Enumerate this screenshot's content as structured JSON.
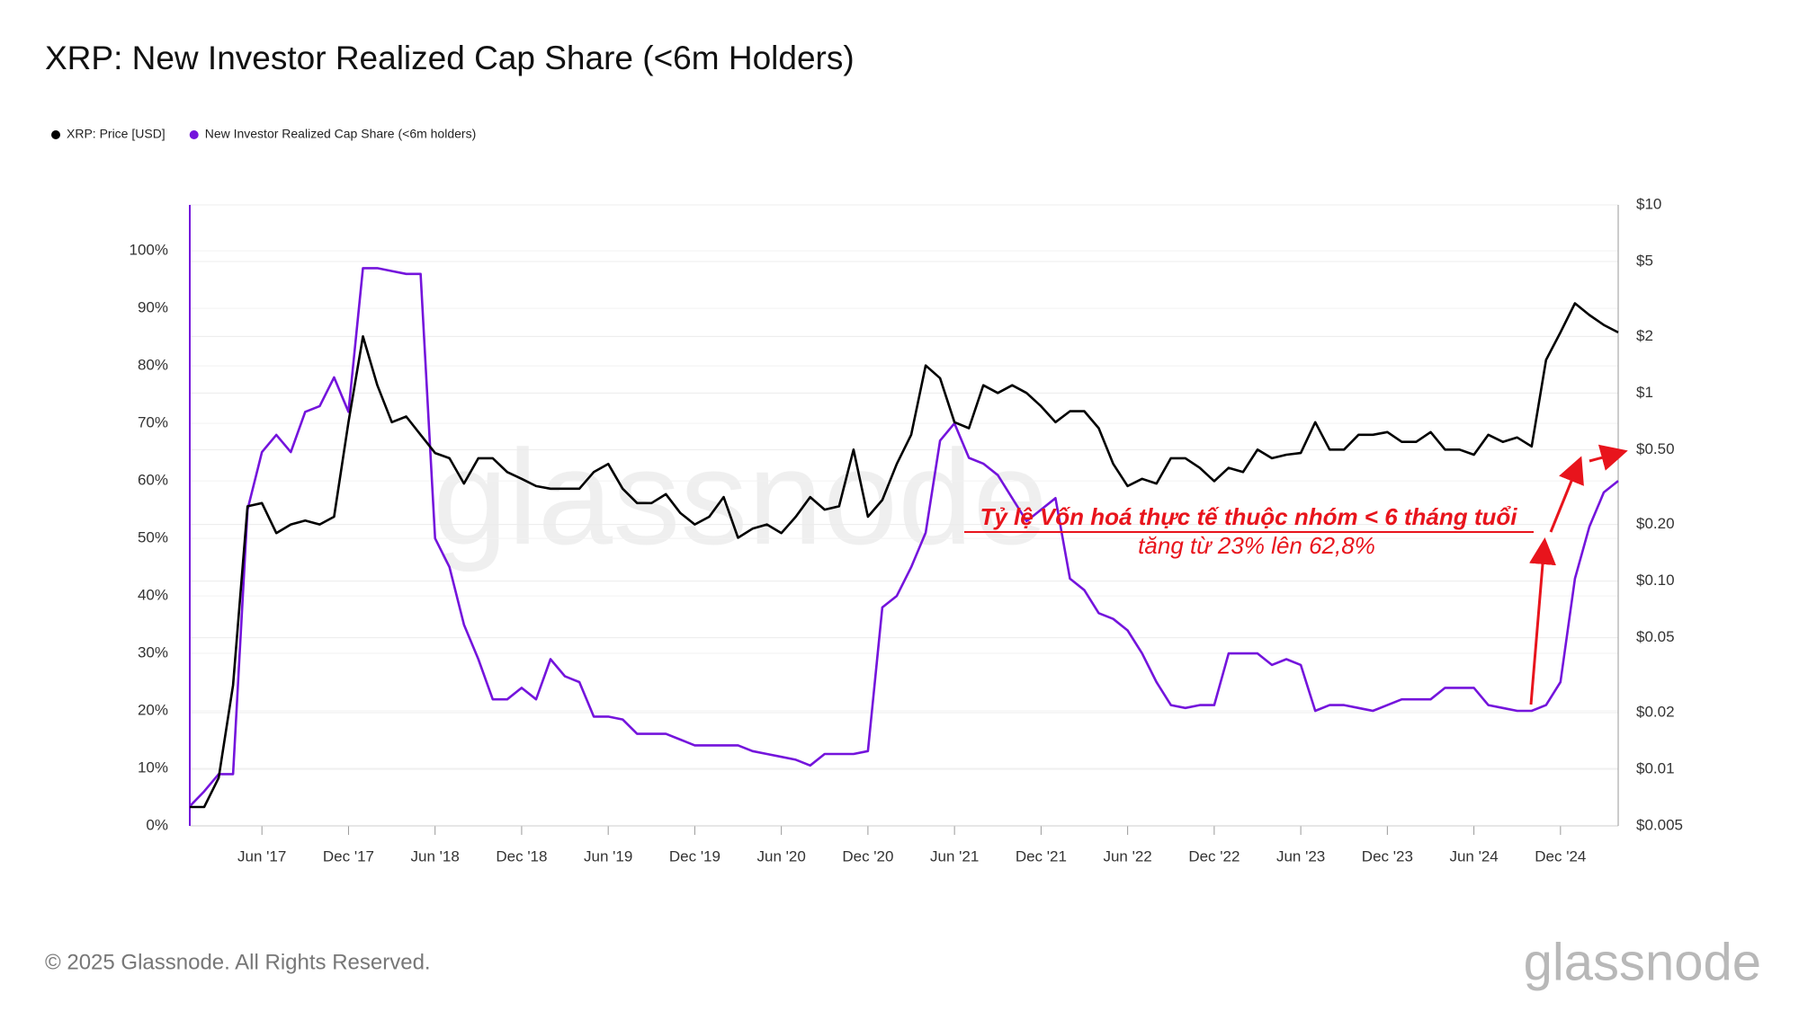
{
  "chart_data": {
    "type": "line",
    "title": "XRP: New Investor Realized Cap Share (<6m Holders)",
    "annotations": [
      "Tỷ lệ Vốn hoá thực tế thuộc nhóm < 6 tháng tuổi",
      "tăng từ 23% lên 62,8%"
    ],
    "watermark": "glassnode",
    "footer": "© 2025 Glassnode. All Rights Reserved.",
    "logo": "glassnode",
    "x": [
      "2017-01",
      "2017-02",
      "2017-03",
      "2017-04",
      "2017-05",
      "2017-06",
      "2017-07",
      "2017-08",
      "2017-09",
      "2017-10",
      "2017-11",
      "2017-12",
      "2018-01",
      "2018-02",
      "2018-03",
      "2018-04",
      "2018-05",
      "2018-06",
      "2018-07",
      "2018-08",
      "2018-09",
      "2018-10",
      "2018-11",
      "2018-12",
      "2019-01",
      "2019-02",
      "2019-03",
      "2019-04",
      "2019-05",
      "2019-06",
      "2019-07",
      "2019-08",
      "2019-09",
      "2019-10",
      "2019-11",
      "2019-12",
      "2020-01",
      "2020-02",
      "2020-03",
      "2020-04",
      "2020-05",
      "2020-06",
      "2020-07",
      "2020-08",
      "2020-09",
      "2020-10",
      "2020-11",
      "2020-12",
      "2021-01",
      "2021-02",
      "2021-03",
      "2021-04",
      "2021-05",
      "2021-06",
      "2021-07",
      "2021-08",
      "2021-09",
      "2021-10",
      "2021-11",
      "2021-12",
      "2022-01",
      "2022-02",
      "2022-03",
      "2022-04",
      "2022-05",
      "2022-06",
      "2022-07",
      "2022-08",
      "2022-09",
      "2022-10",
      "2022-11",
      "2022-12",
      "2023-01",
      "2023-02",
      "2023-03",
      "2023-04",
      "2023-05",
      "2023-06",
      "2023-07",
      "2023-08",
      "2023-09",
      "2023-10",
      "2023-11",
      "2023-12",
      "2024-01",
      "2024-02",
      "2024-03",
      "2024-04",
      "2024-05",
      "2024-06",
      "2024-07",
      "2024-08",
      "2024-09",
      "2024-10",
      "2024-11",
      "2024-12",
      "2025-01",
      "2025-02",
      "2025-03",
      "2025-04"
    ],
    "series": [
      {
        "name": "XRP: Price [USD]",
        "color": "#000000",
        "axis": "y2",
        "values": [
          0.0063,
          0.0063,
          0.009,
          0.028,
          0.25,
          0.26,
          0.18,
          0.2,
          0.21,
          0.2,
          0.22,
          0.7,
          2.0,
          1.1,
          0.7,
          0.75,
          0.6,
          0.48,
          0.45,
          0.33,
          0.45,
          0.45,
          0.38,
          0.35,
          0.32,
          0.31,
          0.31,
          0.31,
          0.38,
          0.42,
          0.31,
          0.26,
          0.26,
          0.29,
          0.23,
          0.2,
          0.22,
          0.28,
          0.17,
          0.19,
          0.2,
          0.18,
          0.22,
          0.28,
          0.24,
          0.25,
          0.5,
          0.22,
          0.27,
          0.42,
          0.6,
          1.4,
          1.2,
          0.7,
          0.65,
          1.1,
          1.0,
          1.1,
          1.0,
          0.85,
          0.7,
          0.8,
          0.8,
          0.65,
          0.42,
          0.32,
          0.35,
          0.33,
          0.45,
          0.45,
          0.4,
          0.34,
          0.4,
          0.38,
          0.5,
          0.45,
          0.47,
          0.48,
          0.7,
          0.5,
          0.5,
          0.6,
          0.6,
          0.62,
          0.55,
          0.55,
          0.62,
          0.5,
          0.5,
          0.47,
          0.6,
          0.55,
          0.58,
          0.52,
          1.5,
          2.1,
          3.0,
          2.6,
          2.3,
          2.1
        ]
      },
      {
        "name": "New Investor Realized Cap Share (<6m holders)",
        "color": "#7414dc",
        "axis": "y",
        "values": [
          3.4,
          6,
          9,
          9,
          55,
          65,
          68,
          65,
          72,
          73,
          78,
          72,
          97,
          97,
          96.5,
          96,
          96,
          50,
          45,
          35,
          29,
          22,
          22,
          24,
          22,
          29,
          26,
          25,
          19,
          19,
          18.5,
          16,
          16,
          16,
          15,
          14,
          14,
          14,
          14,
          13,
          12.5,
          12,
          11.5,
          10.5,
          12.5,
          12.5,
          12.5,
          13,
          38,
          40,
          45,
          51,
          67,
          70,
          64,
          63,
          61,
          57,
          53,
          55,
          57,
          43,
          41,
          37,
          36,
          34,
          30,
          25,
          21,
          20.5,
          21,
          21,
          30,
          30,
          30,
          28,
          29,
          28,
          20,
          21,
          21,
          20.5,
          20,
          21,
          22,
          22,
          22,
          24,
          24,
          24,
          21,
          20.5,
          20,
          20,
          21,
          25,
          43,
          52,
          58,
          60
        ]
      }
    ],
    "xlim": [
      "2017-01",
      "2025-04"
    ],
    "xticks": [
      {
        "value": "2017-06",
        "label": "Jun '17"
      },
      {
        "value": "2017-12",
        "label": "Dec '17"
      },
      {
        "value": "2018-06",
        "label": "Jun '18"
      },
      {
        "value": "2018-12",
        "label": "Dec '18"
      },
      {
        "value": "2019-06",
        "label": "Jun '19"
      },
      {
        "value": "2019-12",
        "label": "Dec '19"
      },
      {
        "value": "2020-06",
        "label": "Jun '20"
      },
      {
        "value": "2020-12",
        "label": "Dec '20"
      },
      {
        "value": "2021-06",
        "label": "Jun '21"
      },
      {
        "value": "2021-12",
        "label": "Dec '21"
      },
      {
        "value": "2022-06",
        "label": "Jun '22"
      },
      {
        "value": "2022-12",
        "label": "Dec '22"
      },
      {
        "value": "2023-06",
        "label": "Jun '23"
      },
      {
        "value": "2023-12",
        "label": "Dec '23"
      },
      {
        "value": "2024-06",
        "label": "Jun '24"
      },
      {
        "value": "2024-12",
        "label": "Dec '24"
      }
    ],
    "ylim": [
      0,
      108
    ],
    "yticks": [
      {
        "value": 0,
        "label": "0%"
      },
      {
        "value": 10,
        "label": "10%"
      },
      {
        "value": 20,
        "label": "20%"
      },
      {
        "value": 30,
        "label": "30%"
      },
      {
        "value": 40,
        "label": "40%"
      },
      {
        "value": 50,
        "label": "50%"
      },
      {
        "value": 60,
        "label": "60%"
      },
      {
        "value": 70,
        "label": "70%"
      },
      {
        "value": 80,
        "label": "80%"
      },
      {
        "value": 90,
        "label": "90%"
      },
      {
        "value": 100,
        "label": "100%"
      }
    ],
    "y2lim": [
      0.005,
      10
    ],
    "y2log": true,
    "y2ticks": [
      {
        "value": 10,
        "label": "$10"
      },
      {
        "value": 5,
        "label": "$5"
      },
      {
        "value": 2,
        "label": "$2"
      },
      {
        "value": 1,
        "label": "$1"
      },
      {
        "value": 0.5,
        "label": "$0.50"
      },
      {
        "value": 0.2,
        "label": "$0.20"
      },
      {
        "value": 0.1,
        "label": "$0.10"
      },
      {
        "value": 0.05,
        "label": "$0.05"
      },
      {
        "value": 0.02,
        "label": "$0.02"
      },
      {
        "value": 0.01,
        "label": "$0.01"
      },
      {
        "value": 0.005,
        "label": "$0.005"
      }
    ],
    "grid": true,
    "legend": "top-left"
  }
}
